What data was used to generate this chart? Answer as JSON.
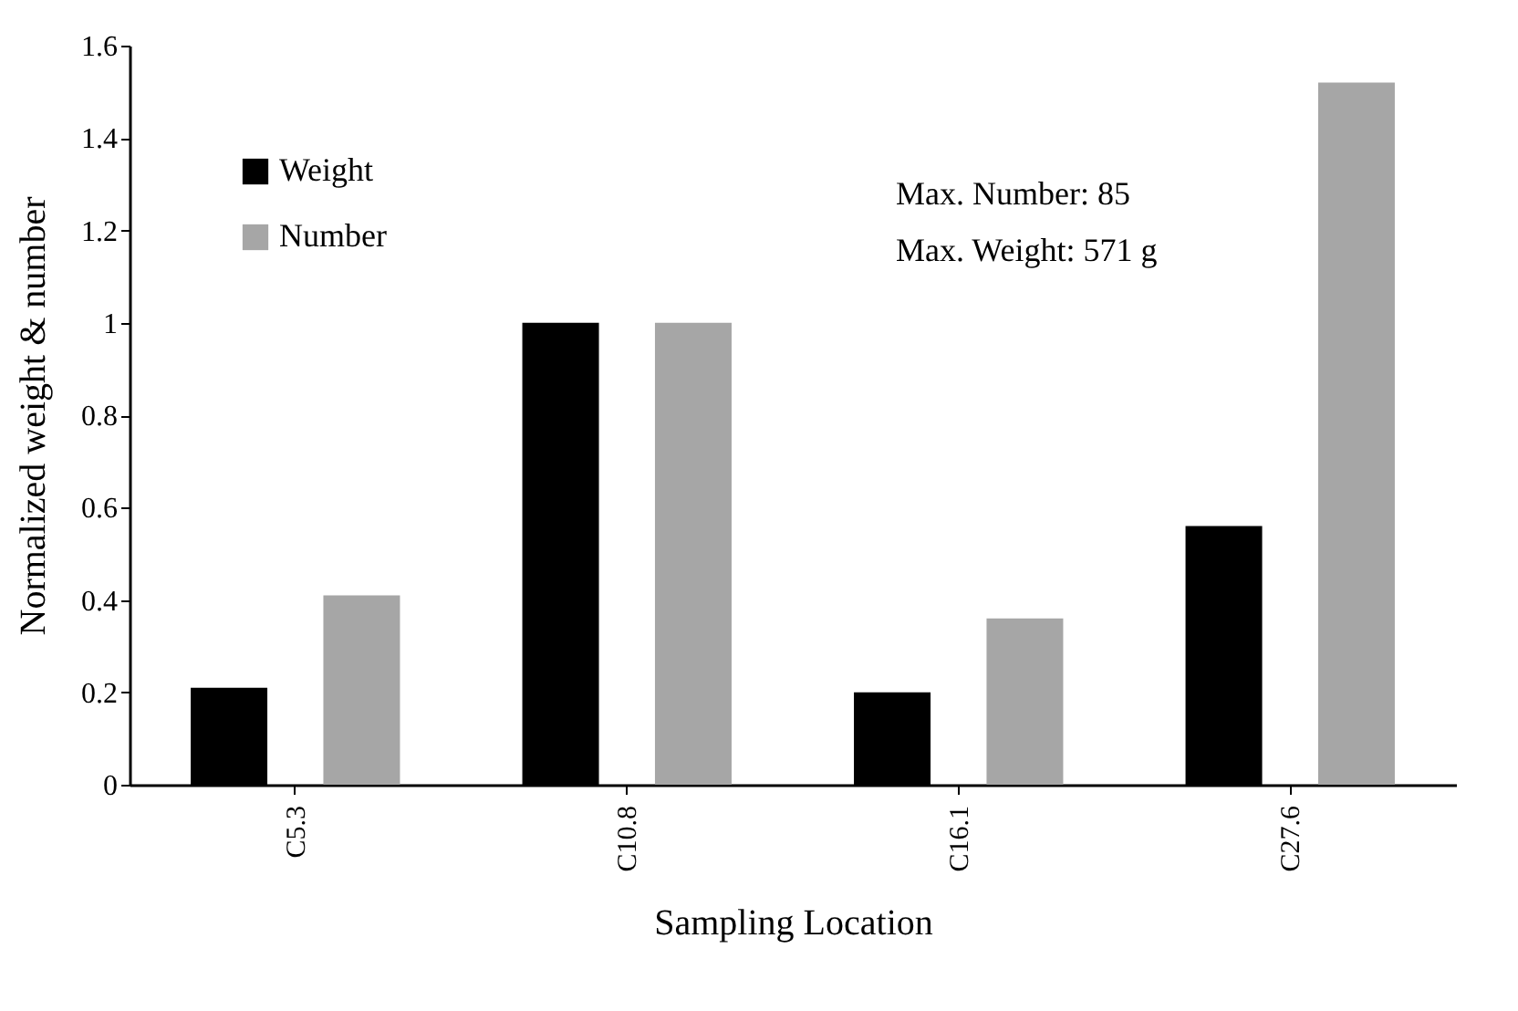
{
  "chart_data": {
    "type": "bar",
    "xlabel": "Sampling Location",
    "ylabel": "Normalized weight & number",
    "categories": [
      "C5.3",
      "C10.8",
      "C16.1",
      "C27.6"
    ],
    "series": [
      {
        "name": "Weight",
        "color": "#000000",
        "values": [
          0.21,
          1.0,
          0.2,
          0.56
        ]
      },
      {
        "name": "Number",
        "color": "#a6a6a6",
        "values": [
          0.41,
          1.0,
          0.36,
          1.52
        ]
      }
    ],
    "ylim": [
      0,
      1.6
    ],
    "yticks": [
      0,
      0.2,
      0.4,
      0.6,
      0.8,
      1,
      1.2,
      1.4,
      1.6
    ],
    "grid": false,
    "legend": "top left",
    "annotations": [
      "Max. Number: 85",
      "Max. Weight: 571 g"
    ]
  }
}
